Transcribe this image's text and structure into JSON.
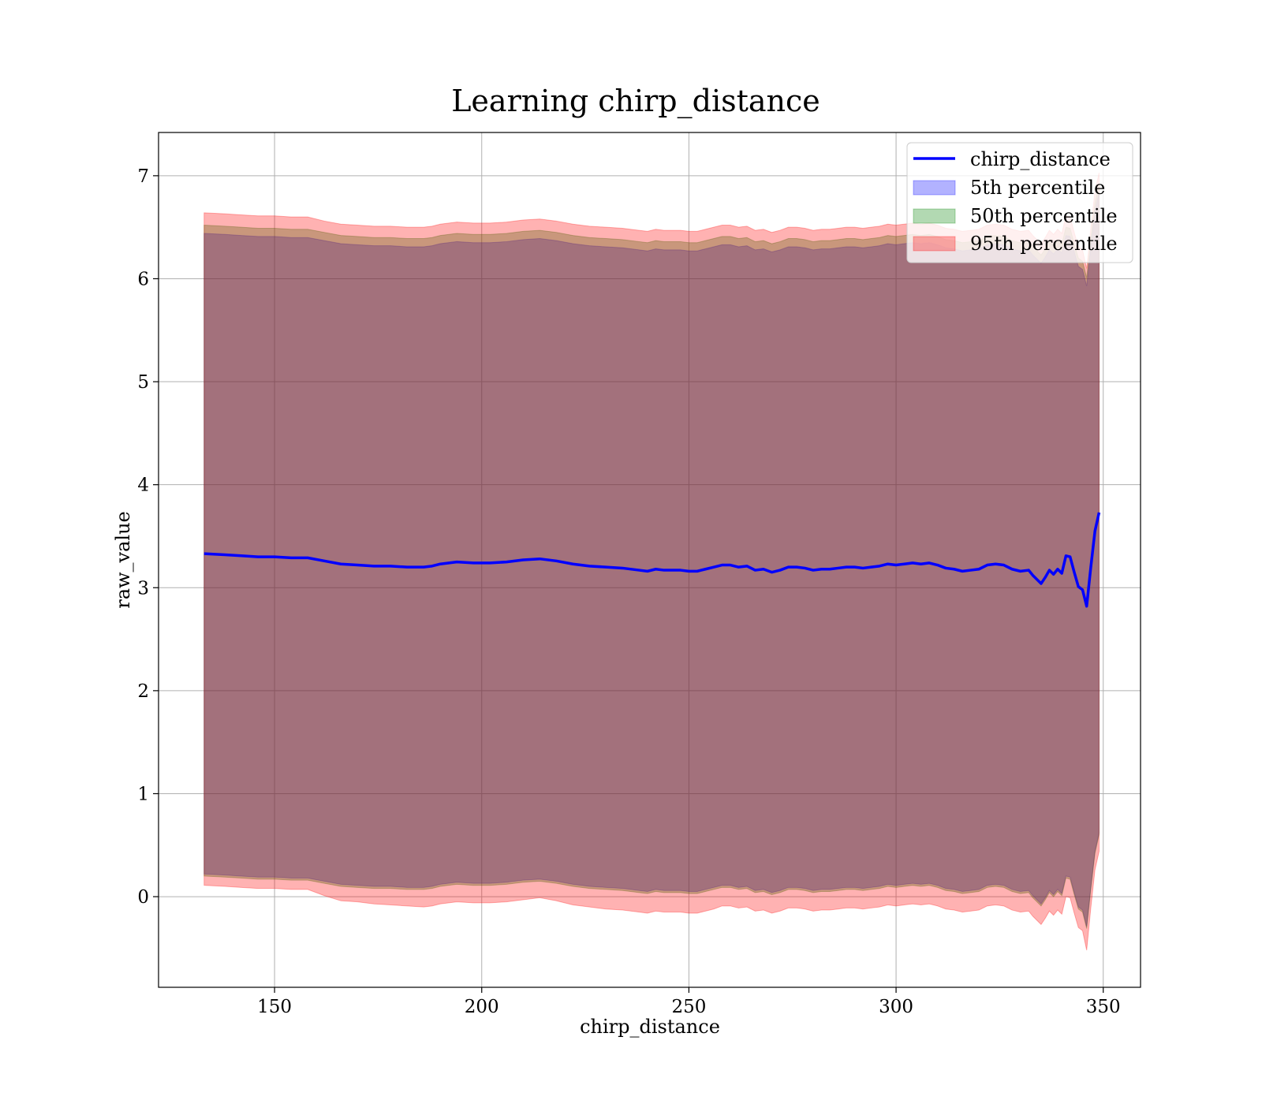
{
  "chart_data": {
    "type": "line",
    "title": "Learning chirp_distance",
    "xlabel": "chirp_distance",
    "ylabel": "raw_value",
    "xlim": [
      122,
      359
    ],
    "ylim": [
      -0.88,
      7.42
    ],
    "xticks": [
      150,
      200,
      250,
      300,
      350
    ],
    "yticks": [
      0,
      1,
      2,
      3,
      4,
      5,
      6,
      7
    ],
    "grid": true,
    "legend_position": "top-right",
    "colors": {
      "line": "#0000ff",
      "band_5": "#0000ff",
      "band_50": "#008000",
      "band_95": "#ff0000",
      "grid": "#b0b0b0"
    },
    "x": [
      133,
      138,
      142,
      146,
      150,
      154,
      158,
      162,
      166,
      170,
      174,
      178,
      182,
      186,
      188,
      190,
      194,
      198,
      202,
      206,
      210,
      214,
      218,
      222,
      226,
      230,
      234,
      238,
      240,
      242,
      244,
      246,
      248,
      250,
      252,
      254,
      256,
      258,
      260,
      262,
      264,
      266,
      268,
      270,
      272,
      274,
      276,
      278,
      280,
      282,
      284,
      286,
      288,
      290,
      292,
      294,
      296,
      298,
      300,
      302,
      304,
      306,
      308,
      310,
      312,
      314,
      316,
      318,
      320,
      322,
      324,
      326,
      328,
      330,
      332,
      333,
      334,
      335,
      336,
      337,
      338,
      339,
      340,
      341,
      342,
      343,
      344,
      345,
      346,
      347,
      348,
      349
    ],
    "series": [
      {
        "name": "chirp_distance",
        "kind": "line",
        "values": [
          3.33,
          3.32,
          3.31,
          3.3,
          3.3,
          3.29,
          3.29,
          3.26,
          3.23,
          3.22,
          3.21,
          3.21,
          3.2,
          3.2,
          3.21,
          3.23,
          3.25,
          3.24,
          3.24,
          3.25,
          3.27,
          3.28,
          3.26,
          3.23,
          3.21,
          3.2,
          3.19,
          3.17,
          3.16,
          3.18,
          3.17,
          3.17,
          3.17,
          3.16,
          3.16,
          3.18,
          3.2,
          3.22,
          3.22,
          3.2,
          3.21,
          3.17,
          3.18,
          3.15,
          3.17,
          3.2,
          3.2,
          3.19,
          3.17,
          3.18,
          3.18,
          3.19,
          3.2,
          3.2,
          3.19,
          3.2,
          3.21,
          3.23,
          3.22,
          3.23,
          3.24,
          3.23,
          3.24,
          3.22,
          3.19,
          3.18,
          3.16,
          3.17,
          3.18,
          3.22,
          3.23,
          3.22,
          3.18,
          3.16,
          3.17,
          3.12,
          3.08,
          3.04,
          3.1,
          3.17,
          3.13,
          3.18,
          3.14,
          3.31,
          3.3,
          3.15,
          3.01,
          2.98,
          2.82,
          3.2,
          3.55,
          3.73
        ]
      },
      {
        "name": "5th percentile",
        "kind": "band",
        "lower": [
          0.22,
          0.21,
          0.2,
          0.19,
          0.19,
          0.18,
          0.18,
          0.15,
          0.12,
          0.11,
          0.1,
          0.1,
          0.09,
          0.09,
          0.1,
          0.12,
          0.14,
          0.13,
          0.13,
          0.14,
          0.16,
          0.17,
          0.15,
          0.12,
          0.1,
          0.09,
          0.08,
          0.06,
          0.05,
          0.07,
          0.06,
          0.06,
          0.06,
          0.05,
          0.05,
          0.07,
          0.09,
          0.11,
          0.11,
          0.09,
          0.1,
          0.06,
          0.07,
          0.04,
          0.06,
          0.09,
          0.09,
          0.08,
          0.06,
          0.07,
          0.07,
          0.08,
          0.09,
          0.09,
          0.08,
          0.09,
          0.1,
          0.12,
          0.11,
          0.12,
          0.13,
          0.12,
          0.13,
          0.11,
          0.08,
          0.07,
          0.05,
          0.06,
          0.07,
          0.11,
          0.12,
          0.11,
          0.07,
          0.05,
          0.06,
          0.01,
          -0.03,
          -0.07,
          -0.01,
          0.06,
          0.02,
          0.07,
          0.03,
          0.2,
          0.19,
          0.04,
          -0.1,
          -0.13,
          -0.29,
          0.09,
          0.44,
          0.62
        ],
        "upper": [
          6.44,
          6.43,
          6.42,
          6.41,
          6.41,
          6.4,
          6.4,
          6.37,
          6.34,
          6.33,
          6.32,
          6.32,
          6.31,
          6.31,
          6.32,
          6.34,
          6.36,
          6.35,
          6.35,
          6.36,
          6.38,
          6.39,
          6.37,
          6.34,
          6.32,
          6.31,
          6.3,
          6.28,
          6.27,
          6.29,
          6.28,
          6.28,
          6.28,
          6.27,
          6.27,
          6.29,
          6.31,
          6.33,
          6.33,
          6.31,
          6.32,
          6.28,
          6.29,
          6.26,
          6.28,
          6.31,
          6.31,
          6.3,
          6.28,
          6.29,
          6.29,
          6.3,
          6.31,
          6.31,
          6.3,
          6.31,
          6.32,
          6.34,
          6.33,
          6.34,
          6.35,
          6.34,
          6.35,
          6.33,
          6.3,
          6.29,
          6.27,
          6.28,
          6.29,
          6.33,
          6.34,
          6.33,
          6.29,
          6.27,
          6.28,
          6.23,
          6.19,
          6.15,
          6.21,
          6.28,
          6.24,
          6.29,
          6.25,
          6.42,
          6.41,
          6.26,
          6.12,
          6.09,
          5.93,
          6.31,
          6.66,
          6.84
        ]
      },
      {
        "name": "50th percentile",
        "kind": "band",
        "lower": [
          0.2,
          0.19,
          0.18,
          0.17,
          0.17,
          0.16,
          0.16,
          0.13,
          0.1,
          0.09,
          0.08,
          0.08,
          0.07,
          0.07,
          0.08,
          0.1,
          0.12,
          0.11,
          0.11,
          0.12,
          0.14,
          0.15,
          0.13,
          0.1,
          0.08,
          0.07,
          0.06,
          0.04,
          0.03,
          0.05,
          0.04,
          0.04,
          0.04,
          0.03,
          0.03,
          0.05,
          0.07,
          0.09,
          0.09,
          0.07,
          0.08,
          0.04,
          0.05,
          0.02,
          0.04,
          0.07,
          0.07,
          0.06,
          0.04,
          0.05,
          0.05,
          0.06,
          0.07,
          0.07,
          0.06,
          0.07,
          0.08,
          0.1,
          0.09,
          0.1,
          0.11,
          0.1,
          0.11,
          0.09,
          0.06,
          0.05,
          0.03,
          0.04,
          0.05,
          0.09,
          0.1,
          0.09,
          0.05,
          0.03,
          0.04,
          -0.01,
          -0.05,
          -0.09,
          -0.03,
          0.04,
          0.0,
          0.05,
          0.01,
          0.18,
          0.17,
          0.02,
          -0.12,
          -0.15,
          -0.31,
          0.07,
          0.42,
          0.6
        ],
        "upper": [
          6.52,
          6.51,
          6.5,
          6.49,
          6.49,
          6.48,
          6.48,
          6.45,
          6.42,
          6.41,
          6.4,
          6.4,
          6.39,
          6.39,
          6.4,
          6.42,
          6.44,
          6.43,
          6.43,
          6.44,
          6.46,
          6.47,
          6.45,
          6.42,
          6.4,
          6.39,
          6.38,
          6.36,
          6.35,
          6.37,
          6.36,
          6.36,
          6.36,
          6.35,
          6.35,
          6.37,
          6.39,
          6.41,
          6.41,
          6.39,
          6.4,
          6.36,
          6.37,
          6.34,
          6.36,
          6.39,
          6.39,
          6.38,
          6.36,
          6.37,
          6.37,
          6.38,
          6.39,
          6.39,
          6.38,
          6.39,
          6.4,
          6.42,
          6.41,
          6.42,
          6.43,
          6.42,
          6.43,
          6.41,
          6.38,
          6.37,
          6.35,
          6.36,
          6.37,
          6.41,
          6.42,
          6.41,
          6.37,
          6.35,
          6.36,
          6.31,
          6.27,
          6.23,
          6.29,
          6.36,
          6.32,
          6.37,
          6.33,
          6.5,
          6.49,
          6.34,
          6.2,
          6.17,
          6.01,
          6.39,
          6.74,
          6.92
        ]
      },
      {
        "name": "95th percentile",
        "kind": "band",
        "lower": [
          0.11,
          0.1,
          0.09,
          0.08,
          0.08,
          0.07,
          0.07,
          0.01,
          -0.04,
          -0.05,
          -0.07,
          -0.08,
          -0.09,
          -0.1,
          -0.09,
          -0.07,
          -0.05,
          -0.06,
          -0.06,
          -0.05,
          -0.03,
          -0.01,
          -0.04,
          -0.08,
          -0.1,
          -0.12,
          -0.13,
          -0.15,
          -0.16,
          -0.14,
          -0.15,
          -0.15,
          -0.15,
          -0.16,
          -0.16,
          -0.14,
          -0.12,
          -0.09,
          -0.09,
          -0.11,
          -0.1,
          -0.14,
          -0.13,
          -0.16,
          -0.14,
          -0.11,
          -0.11,
          -0.12,
          -0.14,
          -0.13,
          -0.13,
          -0.12,
          -0.11,
          -0.11,
          -0.12,
          -0.11,
          -0.1,
          -0.08,
          -0.09,
          -0.08,
          -0.07,
          -0.08,
          -0.07,
          -0.09,
          -0.12,
          -0.13,
          -0.15,
          -0.14,
          -0.13,
          -0.09,
          -0.08,
          -0.09,
          -0.13,
          -0.15,
          -0.14,
          -0.19,
          -0.23,
          -0.27,
          -0.21,
          -0.14,
          -0.18,
          -0.13,
          -0.17,
          0.0,
          -0.01,
          -0.16,
          -0.3,
          -0.33,
          -0.52,
          -0.11,
          0.26,
          0.44
        ],
        "upper": [
          6.64,
          6.63,
          6.62,
          6.61,
          6.61,
          6.6,
          6.6,
          6.56,
          6.53,
          6.52,
          6.51,
          6.51,
          6.5,
          6.5,
          6.51,
          6.53,
          6.55,
          6.54,
          6.54,
          6.55,
          6.57,
          6.58,
          6.56,
          6.53,
          6.51,
          6.5,
          6.49,
          6.47,
          6.46,
          6.48,
          6.47,
          6.47,
          6.47,
          6.46,
          6.46,
          6.48,
          6.5,
          6.52,
          6.52,
          6.5,
          6.51,
          6.47,
          6.48,
          6.45,
          6.47,
          6.5,
          6.5,
          6.49,
          6.47,
          6.48,
          6.48,
          6.49,
          6.5,
          6.5,
          6.49,
          6.5,
          6.51,
          6.53,
          6.52,
          6.53,
          6.54,
          6.53,
          6.54,
          6.52,
          6.49,
          6.48,
          6.46,
          6.47,
          6.48,
          6.52,
          6.53,
          6.52,
          6.48,
          6.46,
          6.47,
          6.42,
          6.38,
          6.34,
          6.4,
          6.47,
          6.43,
          6.48,
          6.44,
          6.61,
          6.6,
          6.45,
          6.31,
          6.28,
          6.1,
          6.5,
          6.85,
          7.03
        ]
      }
    ]
  }
}
